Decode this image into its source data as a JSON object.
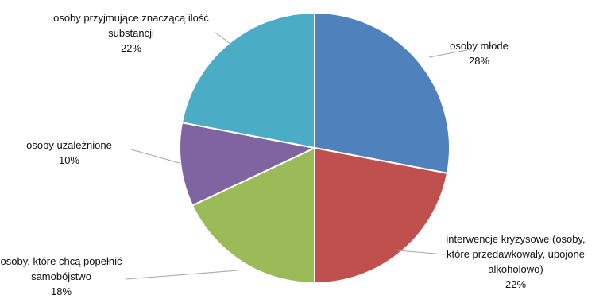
{
  "chart_data": {
    "type": "pie",
    "title": "",
    "slices": [
      {
        "label_lines": [
          "osoby młode"
        ],
        "value": 28,
        "value_label": "28%",
        "color": "#4f81bd"
      },
      {
        "label_lines": [
          "interwencje kryzysowe (osoby,",
          "które przedawkowały, upojone",
          "alkoholowo)"
        ],
        "value": 22,
        "value_label": "22%",
        "color": "#c0504d"
      },
      {
        "label_lines": [
          "osoby, które chcą popełnić",
          "samobójstwo"
        ],
        "value": 18,
        "value_label": "18%",
        "color": "#9bbb59"
      },
      {
        "label_lines": [
          "osoby uzależnione"
        ],
        "value": 10,
        "value_label": "10%",
        "color": "#8064a2"
      },
      {
        "label_lines": [
          "osoby przyjmujące znaczącą ilość",
          "substancji"
        ],
        "value": 22,
        "value_label": "22%",
        "color": "#4bacc6"
      }
    ]
  }
}
